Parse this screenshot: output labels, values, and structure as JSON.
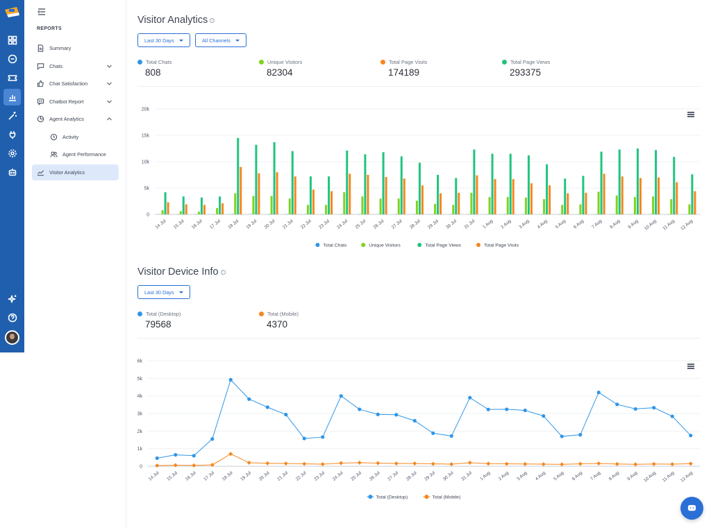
{
  "sidebar": {
    "section_title": "REPORTS",
    "items": [
      {
        "label": "Summary",
        "icon": "document-icon",
        "chevron": "",
        "active": false
      },
      {
        "label": "Chats",
        "icon": "chat-icon",
        "chevron": "down",
        "active": false
      },
      {
        "label": "Chat Satisfaction",
        "icon": "thumbs-up-icon",
        "chevron": "down",
        "active": false
      },
      {
        "label": "Chatbot Report",
        "icon": "bot-message-icon",
        "chevron": "down",
        "active": false
      },
      {
        "label": "Agent Analytics",
        "icon": "pie-chart-icon",
        "chevron": "up",
        "active": false
      },
      {
        "label": "Activity",
        "icon": "clock-icon",
        "chevron": "",
        "active": false
      },
      {
        "label": "Agent Performance",
        "icon": "users-icon",
        "chevron": "",
        "active": false
      },
      {
        "label": "Visitor Analytics",
        "icon": "line-chart-icon",
        "chevron": "",
        "active": true
      }
    ]
  },
  "visitor_analytics": {
    "title": "Visitor Analytics",
    "range_label": "Last 30 Days",
    "channels_label": "All Channels",
    "stats": [
      {
        "label": "Total Chats",
        "value": "808",
        "color": "#2f96e8"
      },
      {
        "label": "Unique Visitors",
        "value": "82304",
        "color": "#7ed321"
      },
      {
        "label": "Total Page Visits",
        "value": "174189",
        "color": "#f5871f"
      },
      {
        "label": "Total Page Views",
        "value": "293375",
        "color": "#1fc47e"
      }
    ]
  },
  "device_info": {
    "title": "Visitor Device Info",
    "range_label": "Last 30 Days",
    "stats": [
      {
        "label": "Total (Desktop)",
        "value": "79568",
        "color": "#2f96e8"
      },
      {
        "label": "Total (Mobile)",
        "value": "4370",
        "color": "#f5871f"
      }
    ]
  },
  "chart_data": [
    {
      "type": "bar",
      "categories": [
        "14 Jul",
        "15 Jul",
        "16 Jul",
        "17 Jul",
        "18 Jul",
        "19 Jul",
        "20 Jul",
        "21 Jul",
        "22 Jul",
        "23 Jul",
        "24 Jul",
        "25 Jul",
        "26 Jul",
        "27 Jul",
        "28 Jul",
        "29 Jul",
        "30 Jul",
        "31 Jul",
        "1 Aug",
        "2 Aug",
        "3 Aug",
        "4 Aug",
        "5 Aug",
        "6 Aug",
        "7 Aug",
        "8 Aug",
        "9 Aug",
        "10 Aug",
        "11 Aug",
        "12 Aug"
      ],
      "ylim": [
        0,
        20000
      ],
      "yticks": [
        "0",
        "5k",
        "10k",
        "15k",
        "20k"
      ],
      "legend_position": "bottom",
      "series": [
        {
          "name": "Total Chats",
          "color": "#2f96e8",
          "values": [
            40,
            30,
            25,
            20,
            60,
            50,
            45,
            40,
            30,
            25,
            35,
            30,
            30,
            25,
            25,
            20,
            20,
            30,
            30,
            25,
            25,
            25,
            20,
            20,
            30,
            30,
            30,
            25,
            25,
            20
          ]
        },
        {
          "name": "Unique Visitors",
          "color": "#7ed321",
          "values": [
            800,
            600,
            500,
            1200,
            4000,
            3500,
            3500,
            3000,
            1800,
            1800,
            4200,
            3400,
            3000,
            3000,
            2600,
            2000,
            1800,
            4100,
            3300,
            3300,
            3200,
            2900,
            1800,
            1900,
            4300,
            3600,
            3300,
            3400,
            2900,
            1900
          ]
        },
        {
          "name": "Total Page Views",
          "color": "#1fc47e",
          "values": [
            4200,
            3400,
            3200,
            3400,
            14500,
            13200,
            13700,
            12000,
            7200,
            7200,
            12100,
            11400,
            11800,
            11000,
            9800,
            7500,
            6900,
            12300,
            11500,
            11500,
            11200,
            9500,
            6800,
            7300,
            11900,
            12300,
            12500,
            12200,
            10900,
            7600
          ]
        },
        {
          "name": "Total Page Visits",
          "color": "#f5871f",
          "values": [
            2300,
            1900,
            1800,
            2100,
            9000,
            7800,
            8000,
            7200,
            4700,
            4400,
            7700,
            7500,
            7100,
            6800,
            5500,
            4000,
            4100,
            7400,
            6700,
            6700,
            5900,
            5500,
            4000,
            4100,
            7700,
            7200,
            6900,
            7000,
            6100,
            4400
          ]
        }
      ]
    },
    {
      "type": "line",
      "categories": [
        "14 Jul",
        "15 Jul",
        "16 Jul",
        "17 Jul",
        "18 Jul",
        "19 Jul",
        "20 Jul",
        "21 Jul",
        "22 Jul",
        "23 Jul",
        "24 Jul",
        "25 Jul",
        "26 Jul",
        "27 Jul",
        "28 Jul",
        "29 Jul",
        "30 Jul",
        "31 Jul",
        "1 Aug",
        "2 Aug",
        "3 Aug",
        "4 Aug",
        "5 Aug",
        "6 Aug",
        "7 Aug",
        "8 Aug",
        "9 Aug",
        "10 Aug",
        "11 Aug",
        "12 Aug"
      ],
      "ylim": [
        0,
        6000
      ],
      "yticks": [
        "0",
        "1k",
        "2k",
        "3k",
        "4k",
        "5k",
        "6k"
      ],
      "legend_position": "bottom",
      "series": [
        {
          "name": "Total (Desktop)",
          "color": "#2f96e8",
          "marker": "circle",
          "values": [
            460,
            650,
            600,
            1550,
            4920,
            3820,
            3360,
            2940,
            1580,
            1660,
            4000,
            3240,
            2950,
            2930,
            2590,
            1880,
            1720,
            3900,
            3230,
            3240,
            3180,
            2860,
            1700,
            1790,
            4200,
            3520,
            3260,
            3330,
            2840,
            1750
          ]
        },
        {
          "name": "Total (Mobile)",
          "color": "#f5871f",
          "marker": "diamond",
          "values": [
            40,
            60,
            50,
            80,
            700,
            200,
            170,
            160,
            140,
            120,
            180,
            200,
            180,
            160,
            160,
            140,
            120,
            200,
            150,
            140,
            130,
            120,
            110,
            140,
            160,
            130,
            110,
            130,
            120,
            150
          ]
        }
      ]
    }
  ]
}
